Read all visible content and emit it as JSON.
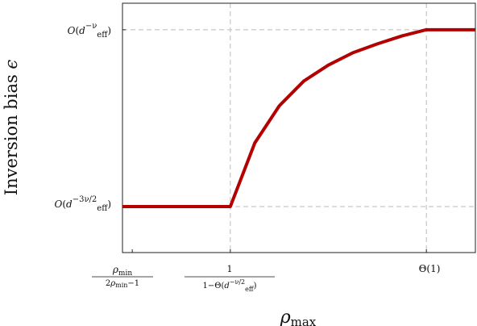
{
  "chart_data": {
    "type": "line",
    "title": "",
    "xlabel": "ρ_max",
    "ylabel": "Inversion bias ϵ",
    "grid": "dashed reference lines at marked ticks",
    "legend": "none",
    "line_color": "#b30000",
    "x_ticks": [
      {
        "pos": 0.0,
        "num": "ρ_min",
        "den": "2ρ_min−1"
      },
      {
        "pos": 1.0,
        "num": "1",
        "den": "1−Θ(d_eff^(−ν/2))"
      },
      {
        "pos": 3.0,
        "text": "Θ(1)"
      }
    ],
    "y_ticks": [
      {
        "pos": 0.0,
        "text": "O(d_eff^(−3ν/2))"
      },
      {
        "pos": 1.0,
        "text": "O(d_eff^(−ν))"
      }
    ],
    "xlim": [
      -0.1,
      3.5
    ],
    "ylim": [
      -0.26,
      1.15
    ],
    "series": [
      {
        "x": [
          -0.1,
          1.0,
          1.25,
          1.5,
          1.75,
          2.0,
          2.25,
          2.5,
          2.75,
          3.0,
          3.5
        ],
        "y": [
          0.0,
          0.0,
          0.36,
          0.57,
          0.71,
          0.8,
          0.87,
          0.92,
          0.965,
          1.0,
          1.0
        ]
      }
    ]
  }
}
